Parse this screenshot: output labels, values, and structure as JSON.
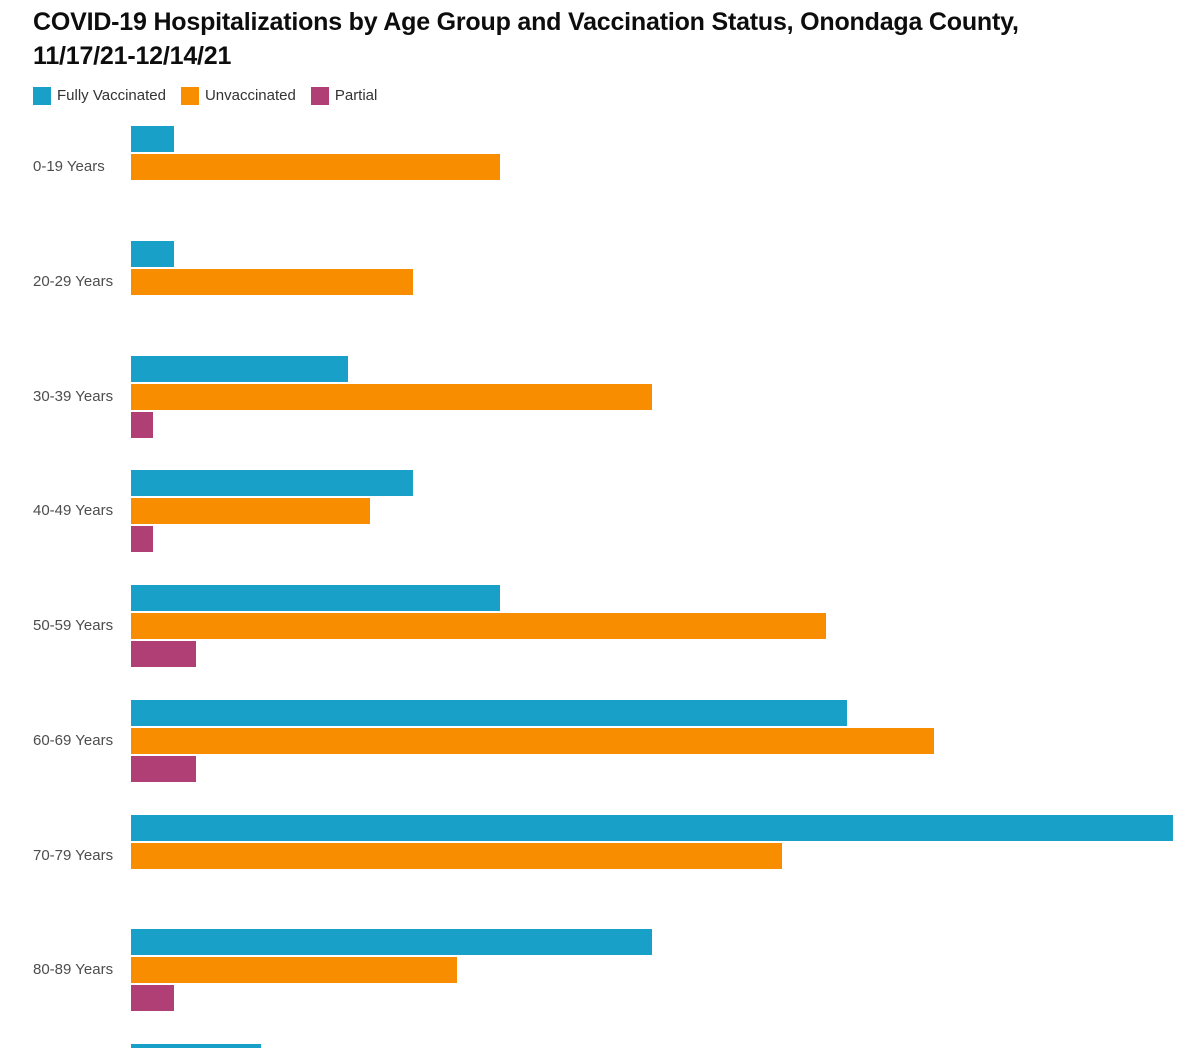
{
  "chart_data": {
    "type": "bar",
    "orientation": "horizontal",
    "title": "COVID-19 Hospitalizations by Age Group and Vaccination Status, Onondaga County, 11/17/21-12/14/21",
    "title_lines": [
      "COVID-19 Hospitalizations by Age Group and Vaccination Status, Onondaga County,",
      "11/17/21-12/14/21"
    ],
    "categories": [
      "0-19 Years",
      "20-29 Years",
      "30-39 Years",
      "40-49 Years",
      "50-59 Years",
      "60-69 Years",
      "70-79 Years",
      "80-89 Years",
      ""
    ],
    "series": [
      {
        "name": "Fully Vaccinated",
        "color": "#18A0C8",
        "values": [
          2,
          2,
          10,
          13,
          17,
          33,
          48,
          24,
          6
        ]
      },
      {
        "name": "Unvaccinated",
        "color": "#F98D00",
        "values": [
          17,
          13,
          24,
          11,
          32,
          37,
          30,
          15,
          0
        ]
      },
      {
        "name": "Partial",
        "color": "#B03F76",
        "values": [
          0,
          0,
          1,
          1,
          3,
          3,
          0,
          2,
          0
        ]
      }
    ],
    "xlabel": "",
    "ylabel": "",
    "value_axis_visible": false,
    "estimated_value_max": 48,
    "grid": false,
    "legend_position": "top",
    "last_row_clipped_at_bottom": true
  },
  "colors": {
    "background": "#ffffff",
    "title_text": "#0d0d0d",
    "category_label_text": "#4d4d4d",
    "legend_label_text": "#333333"
  }
}
